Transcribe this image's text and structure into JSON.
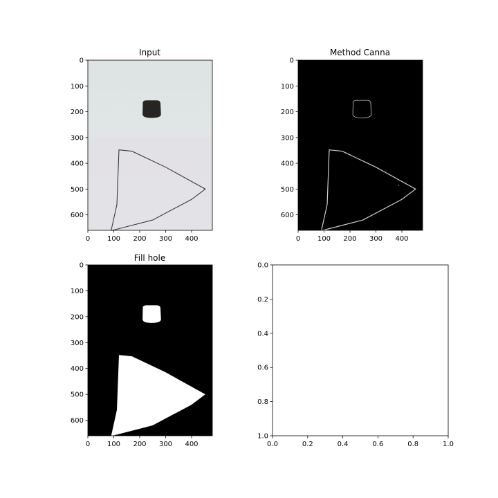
{
  "colors": {
    "paper_top": "#dde4e3",
    "paper_bottom": "#e6e6ea",
    "cap": "#262522",
    "pen": "#3a3a3a",
    "edge": "#cfcfcf",
    "black": "#000000",
    "white": "#ffffff"
  },
  "chart_data": [
    {
      "type": "image",
      "panel": "input",
      "title": "Input",
      "image_content": "photo of paper with dark bottle cap and hand-drawn triangle outline",
      "xlim": [
        0,
        480
      ],
      "ylim": [
        660,
        0
      ],
      "xticks": [
        0,
        100,
        200,
        300,
        400
      ],
      "yticks": [
        0,
        100,
        200,
        300,
        400,
        500,
        600
      ]
    },
    {
      "type": "image",
      "panel": "edges",
      "title": "Method Canna",
      "image_content": "edge map: thin light outlines of cap and triangle on black",
      "xlim": [
        0,
        480
      ],
      "ylim": [
        660,
        0
      ],
      "xticks": [
        0,
        100,
        200,
        300,
        400
      ],
      "yticks": [
        0,
        100,
        200,
        300,
        400,
        500,
        600
      ]
    },
    {
      "type": "image",
      "panel": "fill",
      "title": "Fill hole",
      "image_content": "binary mask: filled white cap and filled white triangle on black",
      "xlim": [
        0,
        480
      ],
      "ylim": [
        660,
        0
      ],
      "xticks": [
        0,
        100,
        200,
        300,
        400
      ],
      "yticks": [
        0,
        100,
        200,
        300,
        400,
        500,
        600
      ]
    },
    {
      "type": "empty",
      "panel": "empty",
      "title": "",
      "xlim": [
        0,
        1
      ],
      "ylim": [
        0,
        1
      ],
      "xticks": [
        "0.0",
        "0.2",
        "0.4",
        "0.6",
        "0.8",
        "1.0"
      ],
      "yticks": [
        "0.0",
        "0.2",
        "0.4",
        "0.6",
        "0.8",
        "1.0"
      ]
    }
  ]
}
